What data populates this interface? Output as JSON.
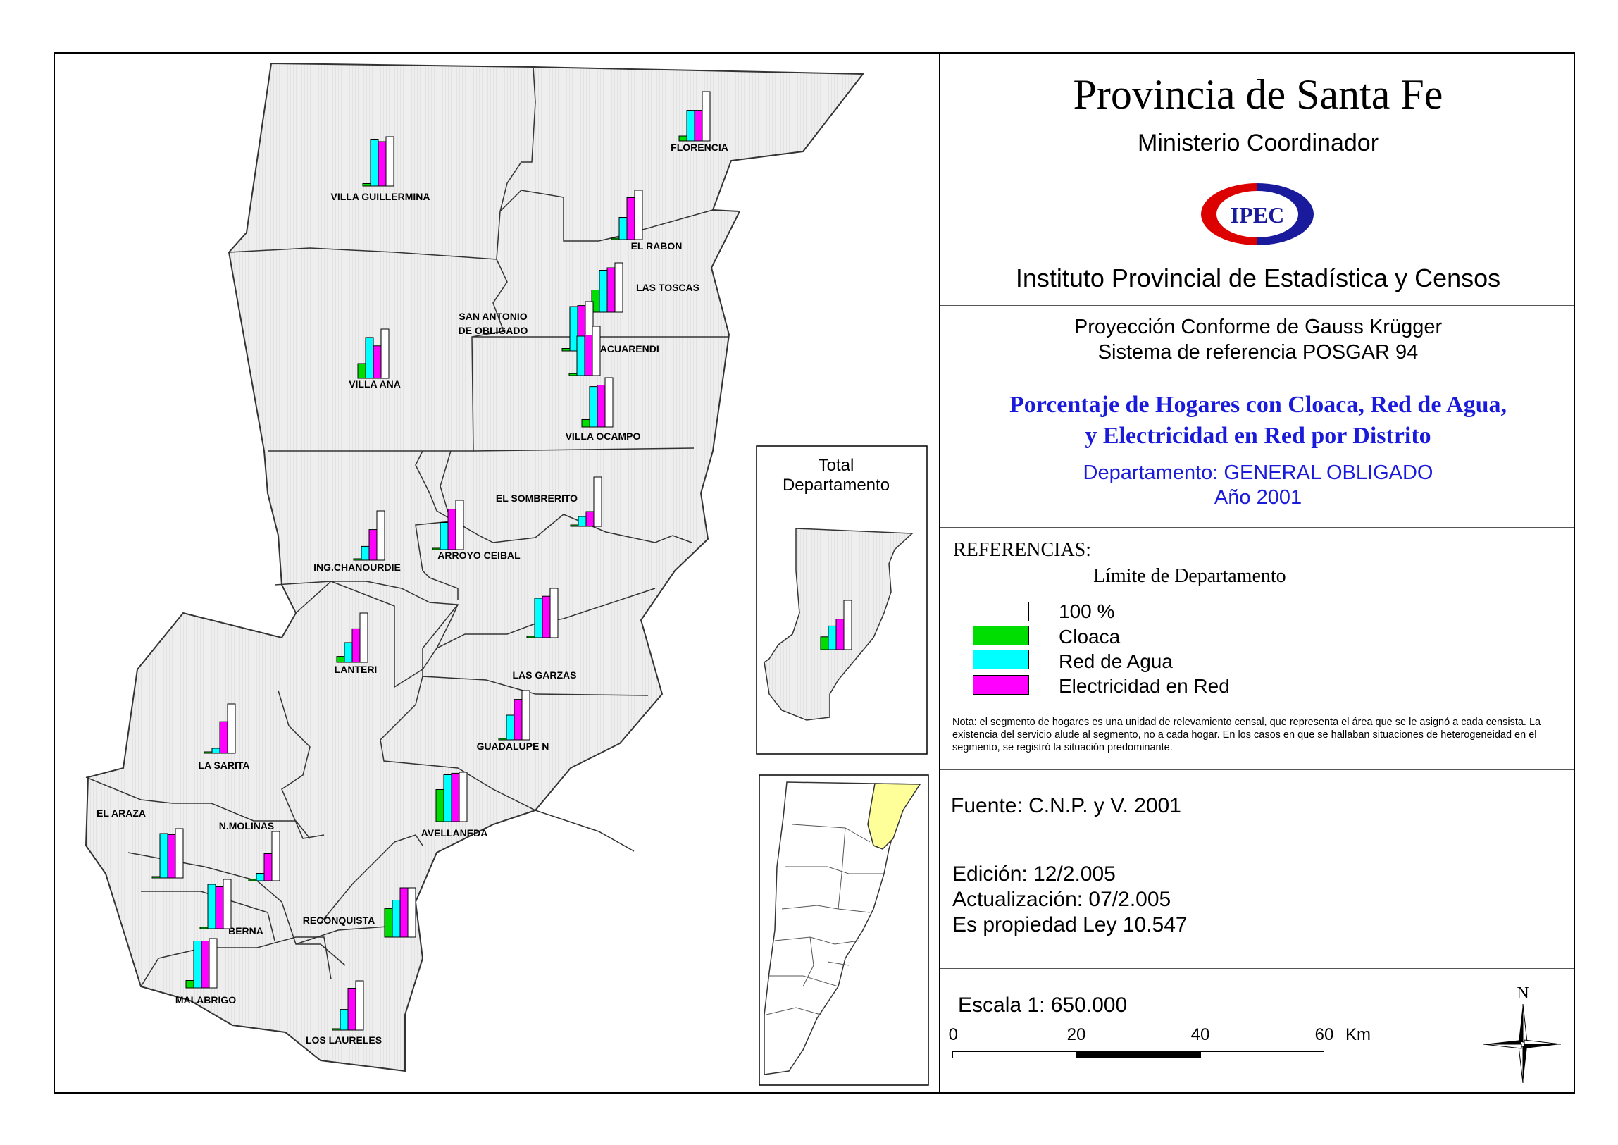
{
  "header": {
    "title": "Provincia de Santa Fe",
    "ministry": "Ministerio Coordinador",
    "logo_text": "IPEC",
    "institute": "Instituto Provincial de Estadística y Censos"
  },
  "projection": {
    "line1": "Proyección Conforme de Gauss Krügger",
    "line2": "Sistema de referencia POSGAR 94"
  },
  "subject": {
    "line1": "Porcentaje de Hogares con Cloaca, Red de Agua,",
    "line2": "y Electricidad en Red por Distrito",
    "department": "Departamento:  GENERAL OBLIGADO",
    "year": "Año 2001"
  },
  "legend": {
    "title": "REFERENCIAS:",
    "boundary_label": "Límite de Departamento",
    "items": [
      {
        "label": "100 %",
        "color": "#ffffff"
      },
      {
        "label": "Cloaca",
        "color": "#00dd00"
      },
      {
        "label": "Red de Agua",
        "color": "#00ffff"
      },
      {
        "label": "Electricidad en Red",
        "color": "#ff00ff"
      }
    ],
    "note": "Nota:  el segmento de hogares es una unidad de relevamiento censal, que representa el área que se le asignó a cada censista.  La existencia del servicio alude al segmento, no a cada hogar.  En los casos en que se hallaban situaciones de heterogeneidad en el segmento, se registró la situación predominante."
  },
  "source": "Fuente:  C.N.P. y V. 2001",
  "edition": {
    "edicion": "Edición:  12/2.005",
    "actualizacion": "Actualización:  07/2.005",
    "propiedad": "Es propiedad Ley 10.547"
  },
  "scale": {
    "text": "Escala 1: 650.000",
    "ticks": [
      "0",
      "20",
      "40",
      "60"
    ],
    "unit": "Km"
  },
  "north_label": "N",
  "inset_total": {
    "title_line1": "Total",
    "title_line2": "Departamento",
    "values": {
      "cloaca": 0.26,
      "agua": 0.48,
      "electricidad": 0.62
    }
  },
  "colors": {
    "cloaca": "#00dd00",
    "agua": "#00ffff",
    "electricidad": "#ff00ff",
    "total": "#ffffff",
    "map_fill": "#ececec",
    "highlight": "#ffff99",
    "title_blue": "#1a1adb"
  },
  "chart_data": {
    "type": "bar",
    "categories": [
      "Cloaca",
      "Red de Agua",
      "Electricidad en Red",
      "100 %"
    ],
    "series": [
      {
        "name": "FLORENCIA",
        "values": [
          0.1,
          0.62,
          0.62,
          1.0
        ]
      },
      {
        "name": "VILLA GUILLERMINA",
        "values": [
          0.05,
          0.95,
          0.9,
          1.0
        ]
      },
      {
        "name": "EL RABON",
        "values": [
          0.02,
          0.45,
          0.85,
          1.0
        ]
      },
      {
        "name": "LAS TOSCAS",
        "values": [
          0.45,
          0.85,
          0.9,
          1.0
        ]
      },
      {
        "name": "SAN ANTONIO DE OBLIGADO",
        "values": [
          0.05,
          0.9,
          0.92,
          1.0
        ]
      },
      {
        "name": "TACUARENDI",
        "values": [
          0.04,
          0.8,
          0.82,
          1.0
        ]
      },
      {
        "name": "VILLA ANA",
        "values": [
          0.3,
          0.83,
          0.66,
          1.0
        ]
      },
      {
        "name": "VILLA OCAMPO",
        "values": [
          0.15,
          0.82,
          0.85,
          1.0
        ]
      },
      {
        "name": "EL SOMBRERITO",
        "values": [
          0.02,
          0.2,
          0.3,
          1.0
        ]
      },
      {
        "name": "ING.CHANOURDIE",
        "values": [
          0.02,
          0.28,
          0.62,
          1.0
        ]
      },
      {
        "name": "ARROYO CEIBAL",
        "values": [
          0.02,
          0.55,
          0.82,
          1.0
        ]
      },
      {
        "name": "LANTERI",
        "values": [
          0.12,
          0.4,
          0.68,
          1.0
        ]
      },
      {
        "name": "LAS GARZAS",
        "values": [
          0.02,
          0.8,
          0.84,
          1.0
        ]
      },
      {
        "name": "GUADALUPE N",
        "values": [
          0.02,
          0.5,
          0.82,
          1.0
        ]
      },
      {
        "name": "LA SARITA",
        "values": [
          0.02,
          0.1,
          0.64,
          1.0
        ]
      },
      {
        "name": "AVELLANEDA",
        "values": [
          0.65,
          0.95,
          0.98,
          1.0
        ]
      },
      {
        "name": "EL ARAZA",
        "values": [
          0.02,
          0.9,
          0.88,
          1.0
        ]
      },
      {
        "name": "N.MOLINAS",
        "values": [
          0.02,
          0.15,
          0.55,
          1.0
        ]
      },
      {
        "name": "BERNA",
        "values": [
          0.02,
          0.9,
          0.85,
          1.0
        ]
      },
      {
        "name": "RECONQUISTA",
        "values": [
          0.58,
          0.75,
          1.0,
          1.0
        ]
      },
      {
        "name": "MALABRIGO",
        "values": [
          0.15,
          0.95,
          0.95,
          1.0
        ]
      },
      {
        "name": "LOS LAURELES",
        "values": [
          0.02,
          0.42,
          0.85,
          1.0
        ]
      }
    ]
  }
}
